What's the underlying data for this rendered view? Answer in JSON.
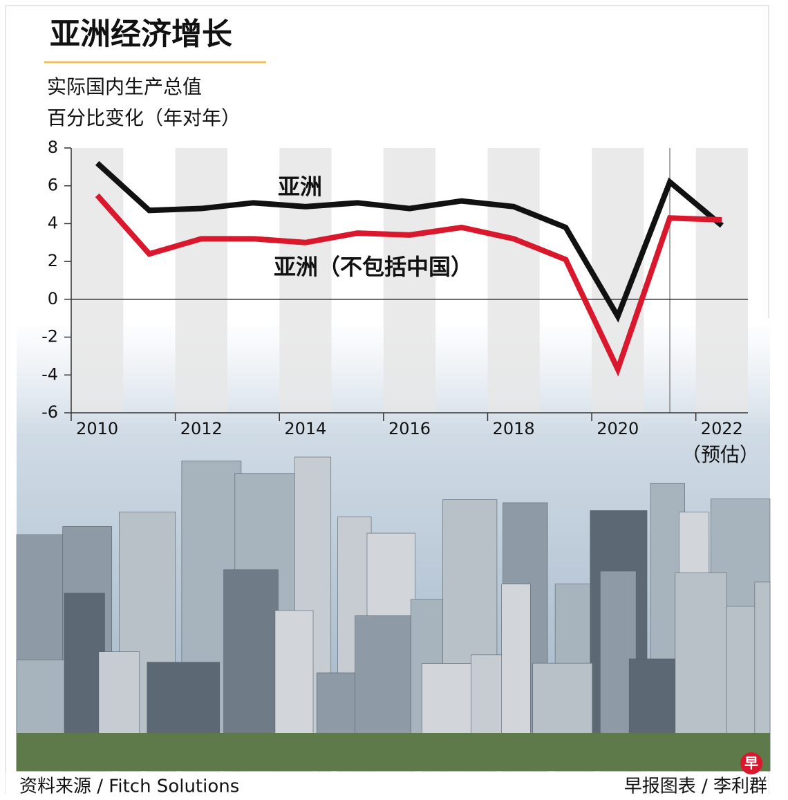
{
  "chart_data": {
    "type": "line",
    "title": "亚洲经济增长",
    "subtitle": [
      "实际国内生产总值",
      "百分比变化（年对年）"
    ],
    "x": [
      2010,
      2011,
      2012,
      2013,
      2014,
      2015,
      2016,
      2017,
      2018,
      2019,
      2020,
      2021,
      2022
    ],
    "series": [
      {
        "name": "亚洲",
        "color": "#111111",
        "values": [
          7.2,
          4.7,
          4.8,
          5.1,
          4.9,
          5.1,
          4.8,
          5.2,
          4.9,
          3.8,
          -0.9,
          6.2,
          3.9
        ]
      },
      {
        "name": "亚洲（不包括中国）",
        "color": "#d9182d",
        "values": [
          5.5,
          2.4,
          3.2,
          3.2,
          3.0,
          3.5,
          3.4,
          3.8,
          3.2,
          2.1,
          -3.7,
          4.3,
          4.2
        ]
      }
    ],
    "xlim": [
      2009.5,
      2022.5
    ],
    "xticks": [
      2010,
      2012,
      2014,
      2016,
      2018,
      2020,
      2022
    ],
    "ylim": [
      -6,
      8
    ],
    "yticks": [
      -6,
      -4,
      -2,
      0,
      2,
      4,
      6,
      8
    ],
    "forecast_note": "（预估）",
    "source": "资料来源 / Fitch Solutions",
    "credit": "早报图表 / 李利群",
    "logo": "早"
  }
}
